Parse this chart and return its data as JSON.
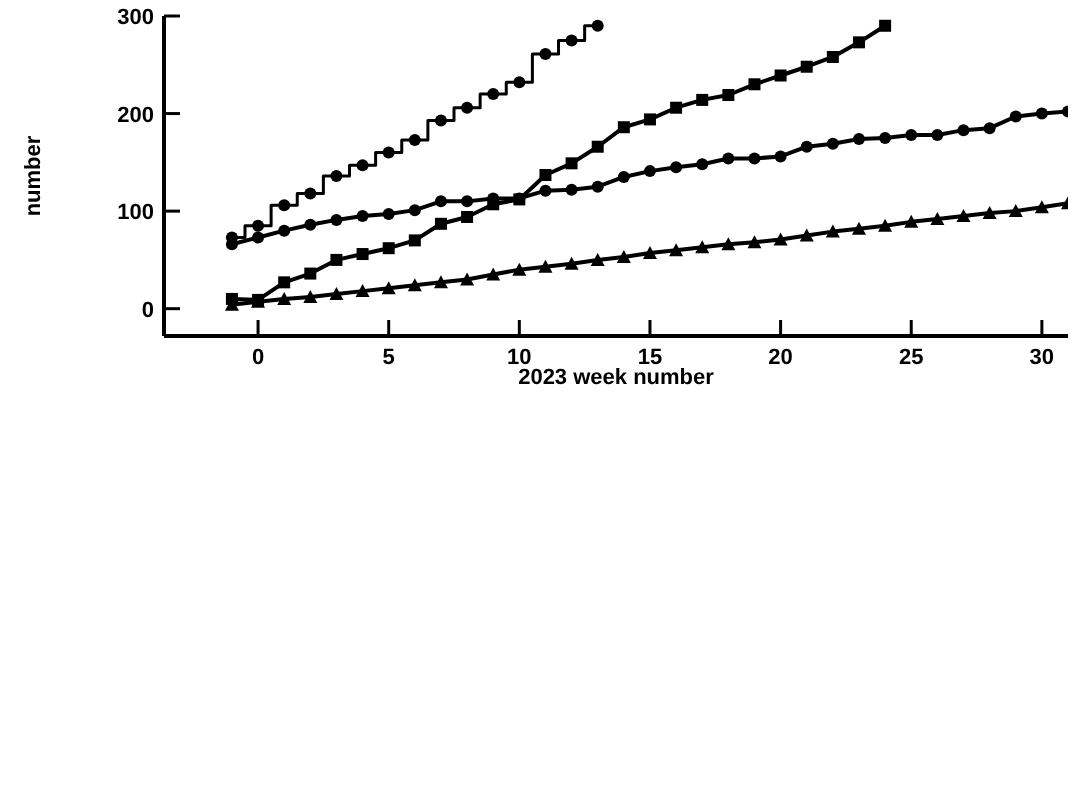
{
  "chart_data": {
    "type": "line",
    "xlabel": "2023 week number",
    "ylabel": "number",
    "x": [
      -1,
      0,
      1,
      2,
      3,
      4,
      5,
      6,
      7,
      8,
      9,
      10,
      11,
      12,
      13,
      14,
      15,
      16,
      17,
      18,
      19,
      20,
      21,
      22,
      23,
      24,
      25,
      26,
      27,
      28,
      29,
      30,
      31
    ],
    "xlim": [
      -3.6,
      31
    ],
    "xticks": [
      0,
      5,
      10,
      15,
      20,
      25,
      30
    ],
    "ylim": [
      -28,
      300
    ],
    "yticks": [
      0,
      100,
      200,
      300
    ],
    "grid": false,
    "legend": false,
    "series": [
      {
        "type": "step",
        "marker": "circle",
        "color": "#000000",
        "values": [
          73,
          85,
          106,
          118,
          136,
          147,
          160,
          173,
          193,
          206,
          220,
          232,
          261,
          275,
          290,
          null,
          null,
          null,
          null,
          null,
          null,
          null,
          null,
          null,
          null,
          null,
          null,
          null,
          null,
          null,
          null,
          null,
          null
        ]
      },
      {
        "marker": "circle",
        "color": "#000000",
        "values": [
          66,
          73,
          80,
          86,
          91,
          95,
          97,
          101,
          110,
          110,
          113,
          113,
          121,
          122,
          125,
          135,
          141,
          145,
          148,
          154,
          154,
          156,
          166,
          169,
          174,
          175,
          178,
          178,
          183,
          185,
          197,
          200,
          202
        ]
      },
      {
        "marker": "square",
        "color": "#000000",
        "values": [
          10,
          9,
          27,
          36,
          50,
          56,
          62,
          70,
          87,
          94,
          107,
          112,
          137,
          149,
          166,
          186,
          194,
          206,
          214,
          219,
          230,
          239,
          248,
          258,
          273,
          290,
          null,
          null,
          null,
          null,
          null,
          null,
          null
        ]
      },
      {
        "marker": "triangle",
        "color": "#000000",
        "values": [
          4,
          7,
          10,
          12,
          15,
          18,
          21,
          24,
          27,
          30,
          35,
          40,
          43,
          46,
          50,
          53,
          57,
          60,
          63,
          66,
          68,
          71,
          75,
          79,
          82,
          85,
          89,
          92,
          95,
          98,
          100,
          104,
          108
        ]
      }
    ]
  }
}
